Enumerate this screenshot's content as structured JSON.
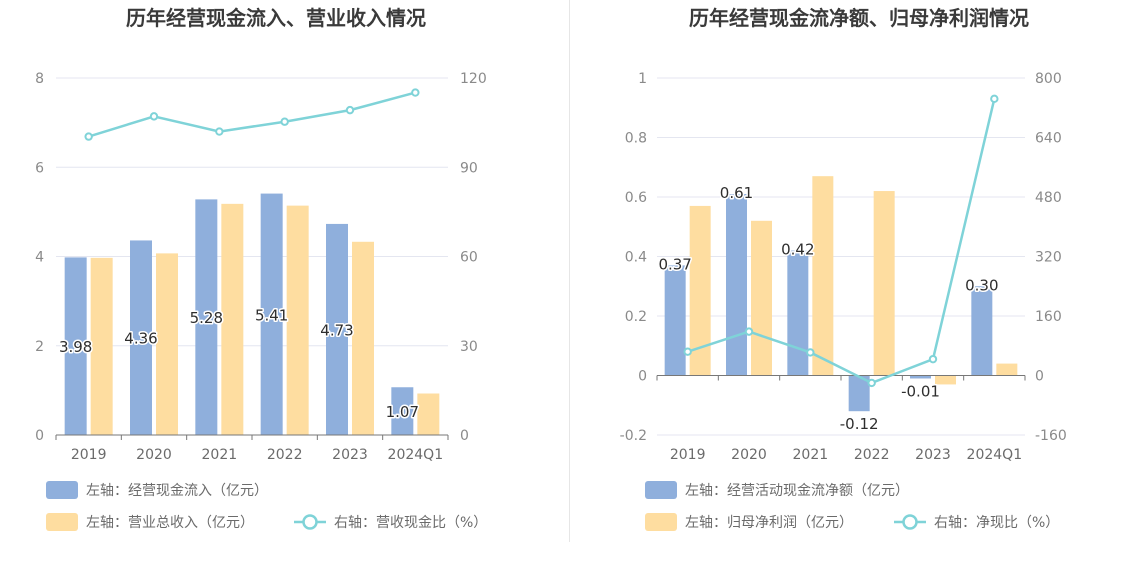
{
  "colors": {
    "bar_primary": "#8fafdc",
    "bar_secondary": "#fedda0",
    "line": "#7fd3d8",
    "divider": "#e6e6e6"
  },
  "chart_data": [
    {
      "type": "bar",
      "title": "历年经营现金流入、营业收入情况",
      "categories": [
        "2019",
        "2020",
        "2021",
        "2022",
        "2023",
        "2024Q1"
      ],
      "left_axis": {
        "ylim": [
          0,
          8
        ],
        "ticks": [
          "0",
          "2",
          "4",
          "6",
          "8"
        ]
      },
      "right_axis": {
        "ylim": [
          0,
          120
        ],
        "ticks": [
          "0",
          "30",
          "60",
          "90",
          "120"
        ]
      },
      "series": [
        {
          "name": "左轴：经营现金流入（亿元）",
          "kind": "bar",
          "axis": "left",
          "values": [
            3.98,
            4.36,
            5.28,
            5.41,
            4.73,
            1.07
          ],
          "labels": [
            "3.98",
            "4.36",
            "5.28",
            "5.41",
            "4.73",
            "1.07"
          ]
        },
        {
          "name": "左轴：营业总收入（亿元）",
          "kind": "bar",
          "axis": "left",
          "values": [
            3.97,
            4.07,
            5.18,
            5.14,
            4.33,
            0.93
          ]
        },
        {
          "name": "右轴：营收现金比（%）",
          "kind": "line",
          "axis": "right",
          "values": [
            100.3,
            107.1,
            102.0,
            105.3,
            109.2,
            115.1
          ]
        }
      ]
    },
    {
      "type": "bar",
      "title": "历年经营现金流净额、归母净利润情况",
      "categories": [
        "2019",
        "2020",
        "2021",
        "2022",
        "2023",
        "2024Q1"
      ],
      "left_axis": {
        "ylim": [
          -0.2,
          1
        ],
        "ticks": [
          "-0.2",
          "0",
          "0.2",
          "0.4",
          "0.6",
          "0.8",
          "1"
        ]
      },
      "right_axis": {
        "ylim": [
          -160,
          800
        ],
        "ticks": [
          "-160",
          "0",
          "160",
          "320",
          "480",
          "640",
          "800"
        ]
      },
      "series": [
        {
          "name": "左轴：经营活动现金流净额（亿元）",
          "kind": "bar",
          "axis": "left",
          "values": [
            0.37,
            0.61,
            0.42,
            -0.12,
            -0.01,
            0.3
          ],
          "labels": [
            "0.37",
            "0.61",
            "0.42",
            "-0.12",
            "-0.01",
            "0.30"
          ]
        },
        {
          "name": "左轴：归母净利润（亿元）",
          "kind": "bar",
          "axis": "left",
          "values": [
            0.57,
            0.52,
            0.67,
            0.62,
            -0.03,
            0.04
          ]
        },
        {
          "name": "右轴：净现比（%）",
          "kind": "line",
          "axis": "right",
          "values": [
            64,
            118,
            62,
            -20,
            44,
            744
          ]
        }
      ]
    }
  ]
}
